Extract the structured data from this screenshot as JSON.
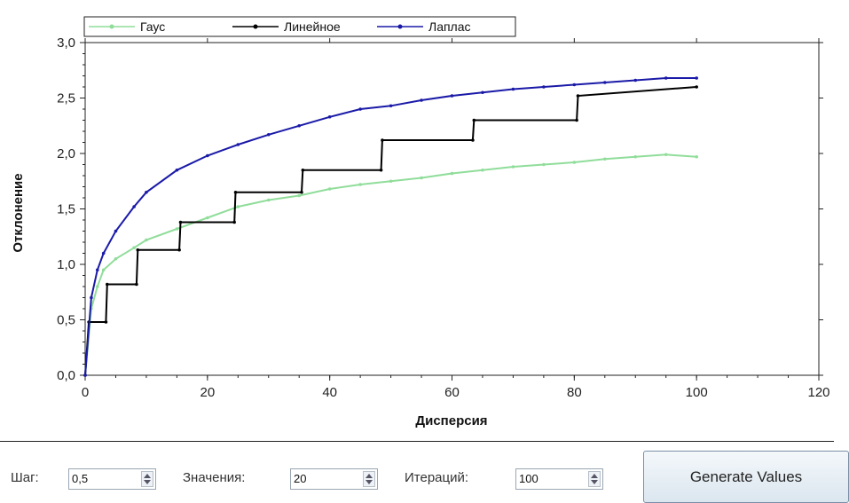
{
  "chart_data": {
    "type": "line",
    "xlabel": "Дисперсия",
    "ylabel": "Отклонение",
    "xlim": [
      0,
      120
    ],
    "ylim": [
      0,
      3.0
    ],
    "x_ticks": [
      "0",
      "20",
      "40",
      "60",
      "80",
      "100",
      "120"
    ],
    "y_ticks": [
      "0,0",
      "0,5",
      "1,0",
      "1,5",
      "2,0",
      "2,5",
      "3,0"
    ],
    "legend_position": "top-left",
    "series": [
      {
        "name": "Гаус",
        "color": "#90dd9a",
        "x": [
          0,
          1,
          2,
          3,
          5,
          8,
          10,
          15,
          20,
          25,
          30,
          35,
          40,
          45,
          50,
          55,
          60,
          65,
          70,
          75,
          80,
          85,
          90,
          95,
          100
        ],
        "y": [
          0.0,
          0.6,
          0.8,
          0.95,
          1.05,
          1.15,
          1.22,
          1.32,
          1.42,
          1.52,
          1.58,
          1.62,
          1.68,
          1.72,
          1.75,
          1.78,
          1.82,
          1.85,
          1.88,
          1.9,
          1.92,
          1.95,
          1.97,
          1.99,
          1.97
        ]
      },
      {
        "name": "Линейное",
        "color": "#000000",
        "x": [
          0,
          0.6,
          3.4,
          3.6,
          8.4,
          8.6,
          15.4,
          15.6,
          24.4,
          24.6,
          35.4,
          35.6,
          48.4,
          48.6,
          63.4,
          63.6,
          80.4,
          80.6,
          100
        ],
        "y": [
          0.0,
          0.48,
          0.48,
          0.82,
          0.82,
          1.13,
          1.13,
          1.38,
          1.38,
          1.65,
          1.65,
          1.85,
          1.85,
          2.12,
          2.12,
          2.3,
          2.3,
          2.52,
          2.6
        ]
      },
      {
        "name": "Лаплас",
        "color": "#1a1aa8",
        "x": [
          0,
          1,
          2,
          3,
          5,
          8,
          10,
          15,
          20,
          25,
          30,
          35,
          40,
          45,
          50,
          55,
          60,
          65,
          70,
          75,
          80,
          85,
          90,
          95,
          100
        ],
        "y": [
          0.0,
          0.7,
          0.95,
          1.1,
          1.3,
          1.52,
          1.65,
          1.85,
          1.98,
          2.08,
          2.17,
          2.25,
          2.33,
          2.4,
          2.43,
          2.48,
          2.52,
          2.55,
          2.58,
          2.6,
          2.62,
          2.64,
          2.66,
          2.68,
          2.68
        ]
      }
    ]
  },
  "controls": {
    "step_label": "Шаг:",
    "step_value": "0,5",
    "values_label": "Значения:",
    "values_value": "20",
    "iterations_label": "Итераций:",
    "iterations_value": "100",
    "generate_label": "Generate Values"
  }
}
